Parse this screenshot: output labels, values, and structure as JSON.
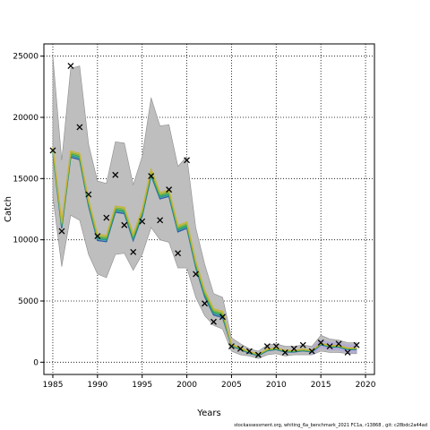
{
  "footer_text": "stockassessment.org, whiting_6a_benchmark_2021 FC1a, r13868 , git: c28bdc2a44ad",
  "chart_data": {
    "type": "line",
    "xlabel": "Years",
    "ylabel": "Catch",
    "xlim": [
      1984,
      2021
    ],
    "ylim": [
      -1000,
      26000
    ],
    "xticks": [
      1985,
      1990,
      1995,
      2000,
      2005,
      2010,
      2015,
      2020
    ],
    "yticks": [
      0,
      5000,
      10000,
      15000,
      20000,
      25000
    ],
    "grid": true,
    "grid_style": "dotted",
    "colors": {
      "ci_band": "#bebebe",
      "ci_band_edge": "#8c8c8c",
      "observed_marker": "#000000",
      "estimate_lines": [
        "#2b5fa8",
        "#1f9d8a",
        "#3aa655",
        "#8fb82a",
        "#c8b43a"
      ],
      "tail_band": "#b0a8d8"
    },
    "x": [
      1985,
      1986,
      1987,
      1988,
      1989,
      1990,
      1991,
      1992,
      1993,
      1994,
      1995,
      1996,
      1997,
      1998,
      1999,
      2000,
      2001,
      2002,
      2003,
      2004,
      2005,
      2006,
      2007,
      2008,
      2009,
      2010,
      2011,
      2012,
      2013,
      2014,
      2015,
      2016,
      2017,
      2018,
      2019
    ],
    "ci_upper": [
      25000,
      16500,
      24000,
      24200,
      17800,
      14800,
      14600,
      18000,
      17900,
      14500,
      16800,
      21600,
      19300,
      19400,
      16000,
      16800,
      11000,
      8000,
      5600,
      5300,
      2000,
      1500,
      1100,
      900,
      1400,
      1500,
      1300,
      1300,
      1400,
      1300,
      2200,
      1900,
      1800,
      1600,
      1600
    ],
    "ci_lower": [
      13500,
      7800,
      12000,
      11600,
      8800,
      7200,
      6900,
      8800,
      8900,
      7500,
      8800,
      11000,
      10000,
      9800,
      7700,
      7700,
      5300,
      3800,
      3000,
      2700,
      900,
      600,
      500,
      300,
      600,
      700,
      500,
      600,
      600,
      600,
      900,
      800,
      800,
      700,
      700
    ],
    "estimate": [
      17300,
      11200,
      17000,
      16800,
      13000,
      10200,
      10100,
      12500,
      12400,
      10200,
      12200,
      15500,
      13600,
      13800,
      10900,
      11200,
      8000,
      5600,
      4100,
      3900,
      1400,
      1100,
      800,
      600,
      1000,
      1100,
      900,
      900,
      1000,
      900,
      1500,
      1300,
      1300,
      1100,
      1100
    ],
    "observed": [
      17300,
      10700,
      24200,
      19200,
      13700,
      10300,
      11800,
      15300,
      11200,
      9000,
      11500,
      15200,
      11600,
      14100,
      8900,
      16500,
      7200,
      4800,
      3300,
      3700,
      1300,
      1100,
      900,
      600,
      1300,
      1300,
      800,
      1100,
      1400,
      900,
      1600,
      1300,
      1500,
      800,
      1400
    ]
  }
}
